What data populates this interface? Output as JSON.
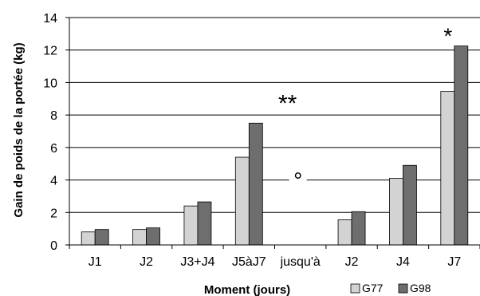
{
  "chart_data": {
    "type": "bar",
    "categories": [
      "J1",
      "J2",
      "J3+J4",
      "J5àJ7",
      "jusqu'à",
      "J2",
      "J4",
      "J7"
    ],
    "series": [
      {
        "name": "G77",
        "values": [
          0.8,
          0.95,
          2.4,
          5.4,
          null,
          1.55,
          4.1,
          9.45
        ],
        "color": "#d3d3d3"
      },
      {
        "name": "G98",
        "values": [
          0.95,
          1.05,
          2.65,
          7.5,
          null,
          2.05,
          4.9,
          12.25
        ],
        "color": "#6e6e6e"
      }
    ],
    "xlabel": "Moment (jours)",
    "ylabel": "Gain de poids de la portée (kg)",
    "ylim": [
      0,
      14
    ],
    "yticks": [
      0,
      2,
      4,
      6,
      8,
      10,
      12,
      14
    ],
    "grid": true,
    "legend_position": "bottom-right",
    "annotations": [
      {
        "text": "**",
        "category_index": 4,
        "y": 9.2
      },
      {
        "text": "*",
        "category_index": 7,
        "y": 13.3
      },
      {
        "text": "°",
        "category_index": 4,
        "y": 3.9
      }
    ]
  }
}
